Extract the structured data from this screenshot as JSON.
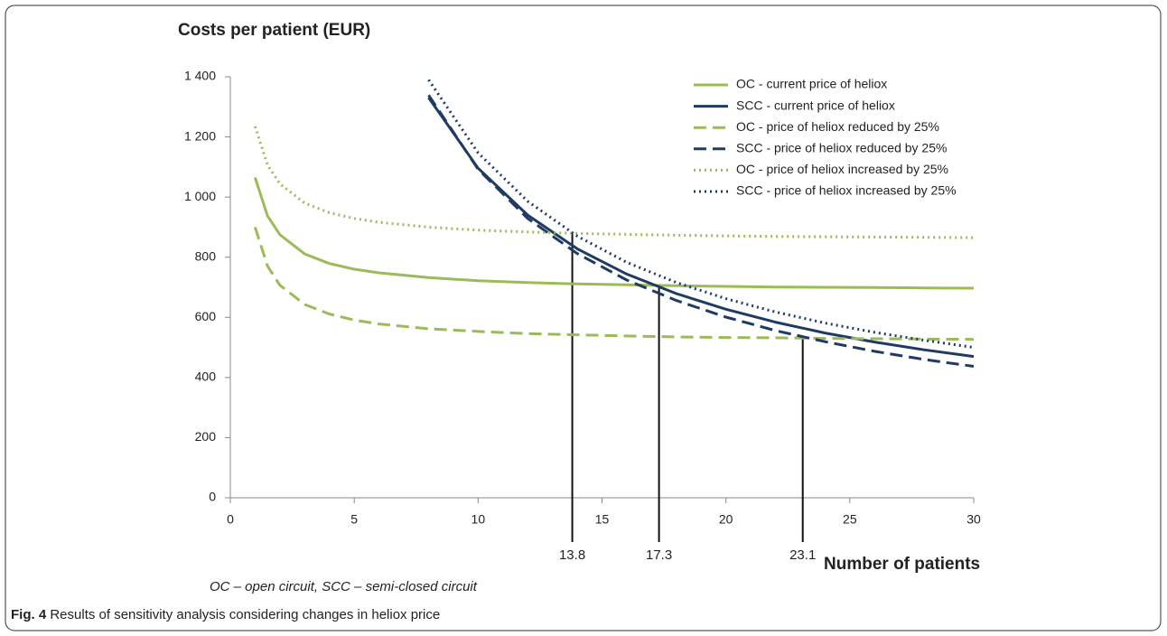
{
  "chart_data": {
    "type": "line",
    "y_label": "Costs per patient (EUR)",
    "x_label": "Number of patients",
    "footnote": "OC – open circuit, SCC – semi-closed circuit",
    "x": [
      1,
      1.5,
      2,
      3,
      4,
      5,
      6,
      8,
      10,
      12,
      14,
      16,
      18,
      20,
      22,
      24,
      26,
      28,
      30
    ],
    "xlim": [
      0,
      30
    ],
    "xticks": [
      0,
      5,
      10,
      15,
      20,
      25,
      30
    ],
    "ylim": [
      0,
      1400
    ],
    "yticks": [
      0,
      200,
      400,
      600,
      800,
      {
        "value": 1000,
        "label": "1 000"
      },
      {
        "value": 1200,
        "label": "1 200"
      },
      {
        "value": 1400,
        "label": "1 400"
      }
    ],
    "series": [
      {
        "name": "OC - current price of heliox",
        "color": "#9bbb59",
        "dash": "solid",
        "values": [
          1065,
          938,
          875,
          811,
          779,
          760,
          748,
          732,
          722,
          716,
          711,
          708,
          705,
          703,
          701,
          700,
          699,
          698,
          697
        ]
      },
      {
        "name": "SCC - current price of heliox",
        "color": "#1f3b63",
        "dash": "solid",
        "values": [
          null,
          null,
          null,
          null,
          null,
          null,
          null,
          1331,
          1096,
          940,
          828,
          744,
          679,
          627,
          584,
          548,
          518,
          492,
          470
        ]
      },
      {
        "name": "OC - price of heliox reduced by 25%",
        "color": "#9bbb59",
        "dash": "dashed",
        "values": [
          900,
          771,
          707,
          643,
          611,
          591,
          578,
          562,
          553,
          546,
          542,
          538,
          535,
          533,
          532,
          530,
          529,
          528,
          527
        ]
      },
      {
        "name": "SCC - price of heliox reduced by 25%",
        "color": "#1f3b63",
        "dash": "dashed",
        "values": [
          null,
          null,
          null,
          null,
          null,
          null,
          null,
          1339,
          1093,
          929,
          812,
          724,
          656,
          601,
          556,
          519,
          487,
          460,
          437
        ]
      },
      {
        "name": "OC - price of heliox increased by 25%",
        "color": "#9bbb59",
        "dash": "dotted",
        "values": [
          1235,
          1107,
          1044,
          980,
          948,
          929,
          916,
          900,
          890,
          884,
          879,
          876,
          873,
          871,
          869,
          868,
          867,
          866,
          865
        ]
      },
      {
        "name": "SCC - price of heliox increased by 25%",
        "color": "#1f3b63",
        "dash": "dotted",
        "values": [
          null,
          null,
          null,
          null,
          null,
          null,
          null,
          1390,
          1147,
          986,
          870,
          783,
          716,
          662,
          618,
          581,
          550,
          524,
          500
        ]
      }
    ],
    "intersections": [
      {
        "x": 13.8,
        "y": 880
      },
      {
        "x": 17.3,
        "y": 700
      },
      {
        "x": 23.1,
        "y": 535
      }
    ]
  },
  "caption": {
    "label": "Fig. 4",
    "text": "Results of sensitivity analysis considering changes in heliox price"
  }
}
